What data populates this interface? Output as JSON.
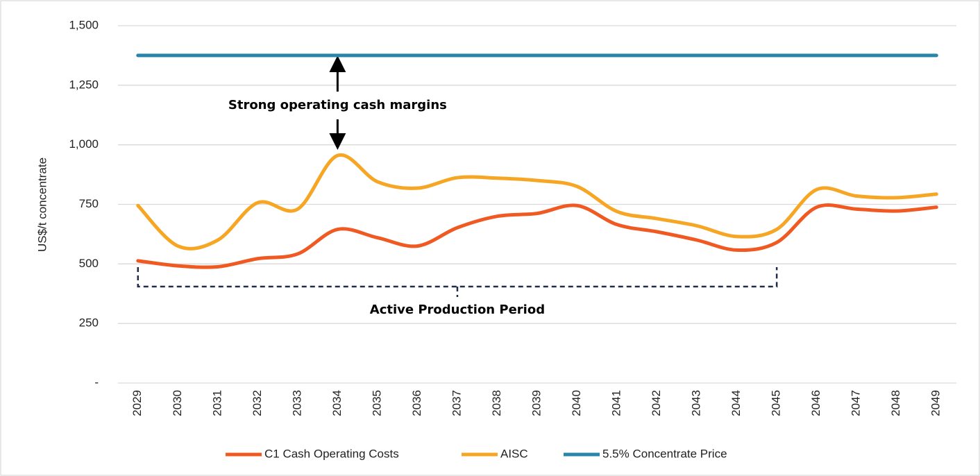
{
  "chart_data": {
    "type": "line",
    "ylabel": "US$/t concentrate",
    "categories": [
      "2029",
      "2030",
      "2031",
      "2032",
      "2033",
      "2034",
      "2035",
      "2036",
      "2037",
      "2038",
      "2039",
      "2040",
      "2041",
      "2042",
      "2043",
      "2044",
      "2045",
      "2046",
      "2047",
      "2048",
      "2049"
    ],
    "series": [
      {
        "name": "C1 Cash Operating Costs",
        "color": "#f05a22",
        "values": [
          513,
          492,
          488,
          522,
          542,
          645,
          610,
          575,
          652,
          700,
          712,
          745,
          665,
          635,
          600,
          558,
          590,
          738,
          730,
          722,
          738
        ]
      },
      {
        "name": "AISC",
        "color": "#f6a623",
        "values": [
          745,
          575,
          600,
          757,
          730,
          955,
          845,
          818,
          862,
          860,
          850,
          825,
          720,
          690,
          660,
          615,
          645,
          812,
          785,
          778,
          793
        ]
      },
      {
        "name": "5.5% Concentrate Price",
        "color": "#2a86a8",
        "values": [
          1375,
          1375,
          1375,
          1375,
          1375,
          1375,
          1375,
          1375,
          1375,
          1375,
          1375,
          1375,
          1375,
          1375,
          1375,
          1375,
          1375,
          1375,
          1375,
          1375,
          1375
        ]
      }
    ],
    "annotations": [
      "Strong operating cash margins",
      "Active Production Period"
    ],
    "ylim": [
      0,
      1500
    ],
    "yticks": [
      {
        "value": 0,
        "label": "-"
      },
      250,
      500,
      750,
      {
        "value": 1000,
        "label": "1,000"
      },
      {
        "value": 1250,
        "label": "1,250"
      },
      {
        "value": 1500,
        "label": "1,500"
      }
    ],
    "grid": true,
    "legend": "bottom"
  }
}
